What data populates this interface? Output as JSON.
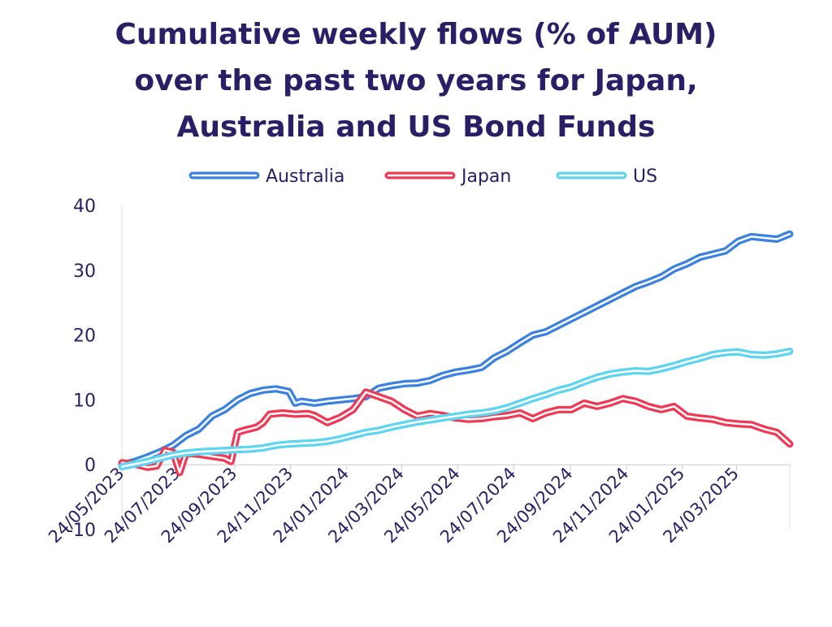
{
  "title_lines": [
    "Cumulative weekly flows (% of AUM)",
    "over the past two years for Japan,",
    "Australia and US Bond Funds"
  ],
  "chart_data": {
    "type": "line",
    "title": "Cumulative weekly flows (% of AUM) over the past two years for Japan, Australia and US Bond Funds",
    "xlabel": "",
    "ylabel": "",
    "ylim": [
      -10,
      40
    ],
    "yticks": [
      "-10",
      "0",
      "10",
      "20",
      "30",
      "40"
    ],
    "xticks": [
      "24/05/2023",
      "24/07/2023",
      "24/09/2023",
      "24/11/2023",
      "24/01/2024",
      "24/03/2024",
      "24/05/2024",
      "24/07/2024",
      "24/09/2024",
      "24/11/2024",
      "24/01/2025",
      "24/03/2025"
    ],
    "xrange": [
      "2023-05-24",
      "2025-05-21"
    ],
    "legend_position": "top",
    "grid": false,
    "series": [
      {
        "name": "Australia",
        "color": "#3b82e0",
        "x": [
          "2023-05-24",
          "2023-06-07",
          "2023-06-21",
          "2023-07-05",
          "2023-07-19",
          "2023-08-02",
          "2023-08-16",
          "2023-08-30",
          "2023-09-13",
          "2023-09-27",
          "2023-10-11",
          "2023-10-25",
          "2023-11-08",
          "2023-11-22",
          "2023-11-29",
          "2023-12-06",
          "2023-12-20",
          "2024-01-03",
          "2024-01-17",
          "2024-01-31",
          "2024-02-14",
          "2024-02-28",
          "2024-03-13",
          "2024-03-27",
          "2024-04-10",
          "2024-04-24",
          "2024-05-08",
          "2024-05-22",
          "2024-06-05",
          "2024-06-19",
          "2024-07-03",
          "2024-07-17",
          "2024-07-31",
          "2024-08-14",
          "2024-08-28",
          "2024-09-11",
          "2024-09-25",
          "2024-10-09",
          "2024-10-23",
          "2024-11-06",
          "2024-11-20",
          "2024-12-04",
          "2024-12-18",
          "2025-01-01",
          "2025-01-15",
          "2025-01-29",
          "2025-02-12",
          "2025-02-26",
          "2025-03-12",
          "2025-03-26",
          "2025-04-09",
          "2025-04-23",
          "2025-05-07",
          "2025-05-21"
        ],
        "values": [
          0,
          0.5,
          1.2,
          2.0,
          3.0,
          4.5,
          5.5,
          7.5,
          8.5,
          10.0,
          11.0,
          11.5,
          11.7,
          11.3,
          9.5,
          9.8,
          9.5,
          9.8,
          10.0,
          10.2,
          10.5,
          11.8,
          12.2,
          12.5,
          12.6,
          13.0,
          13.8,
          14.3,
          14.6,
          15.0,
          16.5,
          17.5,
          18.8,
          20.0,
          20.5,
          21.5,
          22.5,
          23.5,
          24.5,
          25.5,
          26.5,
          27.5,
          28.2,
          29.0,
          30.2,
          31.0,
          32.0,
          32.5,
          33.0,
          34.5,
          35.2,
          35.0,
          34.8,
          35.6
        ]
      },
      {
        "name": "Japan",
        "color": "#ee3a55",
        "x": [
          "2023-05-24",
          "2023-06-07",
          "2023-06-21",
          "2023-07-01",
          "2023-07-10",
          "2023-07-19",
          "2023-07-26",
          "2023-08-02",
          "2023-08-16",
          "2023-08-30",
          "2023-09-13",
          "2023-09-20",
          "2023-09-27",
          "2023-10-04",
          "2023-10-18",
          "2023-10-25",
          "2023-11-01",
          "2023-11-15",
          "2023-11-29",
          "2023-12-13",
          "2023-12-20",
          "2024-01-03",
          "2024-01-17",
          "2024-01-31",
          "2024-02-14",
          "2024-02-28",
          "2024-03-13",
          "2024-03-27",
          "2024-04-10",
          "2024-04-24",
          "2024-05-08",
          "2024-05-22",
          "2024-06-05",
          "2024-06-19",
          "2024-07-03",
          "2024-07-17",
          "2024-07-31",
          "2024-08-14",
          "2024-08-28",
          "2024-09-11",
          "2024-09-25",
          "2024-10-09",
          "2024-10-23",
          "2024-11-06",
          "2024-11-20",
          "2024-12-04",
          "2024-12-18",
          "2025-01-01",
          "2025-01-15",
          "2025-01-29",
          "2025-02-12",
          "2025-02-26",
          "2025-03-12",
          "2025-03-26",
          "2025-04-09",
          "2025-04-23",
          "2025-05-07",
          "2025-05-21"
        ],
        "values": [
          0.3,
          0.1,
          -0.4,
          -0.2,
          2.2,
          1.9,
          -1.2,
          1.8,
          1.6,
          1.3,
          1.0,
          0.5,
          5.0,
          5.3,
          5.8,
          6.5,
          7.8,
          8.0,
          7.8,
          7.9,
          7.6,
          6.5,
          7.3,
          8.5,
          11.2,
          10.5,
          9.8,
          8.5,
          7.5,
          7.9,
          7.6,
          7.2,
          7.0,
          7.1,
          7.4,
          7.6,
          8.0,
          7.1,
          8.0,
          8.5,
          8.5,
          9.5,
          9.0,
          9.5,
          10.2,
          9.8,
          9.0,
          8.5,
          9.0,
          7.5,
          7.2,
          7.0,
          6.5,
          6.3,
          6.2,
          5.5,
          5.0,
          3.2
        ]
      },
      {
        "name": "US",
        "color": "#5dd5f0",
        "x": [
          "2023-05-24",
          "2023-06-07",
          "2023-06-21",
          "2023-07-05",
          "2023-07-19",
          "2023-08-02",
          "2023-08-16",
          "2023-08-30",
          "2023-09-13",
          "2023-09-27",
          "2023-10-11",
          "2023-10-25",
          "2023-11-08",
          "2023-11-22",
          "2023-12-06",
          "2023-12-20",
          "2024-01-03",
          "2024-01-17",
          "2024-01-31",
          "2024-02-14",
          "2024-02-28",
          "2024-03-13",
          "2024-03-27",
          "2024-04-10",
          "2024-04-24",
          "2024-05-08",
          "2024-05-22",
          "2024-06-05",
          "2024-06-19",
          "2024-07-03",
          "2024-07-17",
          "2024-07-31",
          "2024-08-14",
          "2024-08-28",
          "2024-09-11",
          "2024-09-25",
          "2024-10-09",
          "2024-10-23",
          "2024-11-06",
          "2024-11-20",
          "2024-12-04",
          "2024-12-18",
          "2025-01-01",
          "2025-01-15",
          "2025-01-29",
          "2025-02-12",
          "2025-02-26",
          "2025-03-12",
          "2025-03-26",
          "2025-04-09",
          "2025-04-23",
          "2025-05-07",
          "2025-05-21"
        ],
        "values": [
          -0.3,
          0.1,
          0.5,
          1.0,
          1.5,
          1.8,
          2.0,
          2.1,
          2.2,
          2.3,
          2.4,
          2.6,
          3.0,
          3.2,
          3.3,
          3.4,
          3.6,
          4.0,
          4.5,
          5.0,
          5.3,
          5.8,
          6.2,
          6.6,
          6.9,
          7.2,
          7.5,
          7.8,
          8.0,
          8.3,
          8.8,
          9.5,
          10.2,
          10.8,
          11.5,
          12.0,
          12.8,
          13.5,
          14.0,
          14.3,
          14.5,
          14.4,
          14.8,
          15.3,
          15.9,
          16.4,
          17.0,
          17.3,
          17.4,
          17.0,
          16.9,
          17.1,
          17.5
        ]
      }
    ]
  }
}
